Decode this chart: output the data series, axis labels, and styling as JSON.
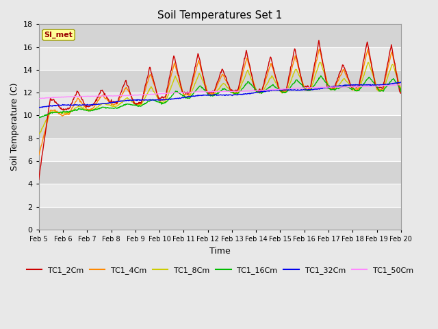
{
  "title": "Soil Temperatures Set 1",
  "xlabel": "Time",
  "ylabel": "Soil Temperature (C)",
  "ylim": [
    0,
    18
  ],
  "yticks": [
    0,
    2,
    4,
    6,
    8,
    10,
    12,
    14,
    16,
    18
  ],
  "annotation": "SI_met",
  "series_colors": {
    "TC1_2Cm": "#cc0000",
    "TC1_4Cm": "#ff8800",
    "TC1_8Cm": "#cccc00",
    "TC1_16Cm": "#00bb00",
    "TC1_32Cm": "#0000ee",
    "TC1_50Cm": "#ff88ff"
  },
  "background_color": "#e8e8e8",
  "n_days": 15,
  "points_per_day": 48
}
